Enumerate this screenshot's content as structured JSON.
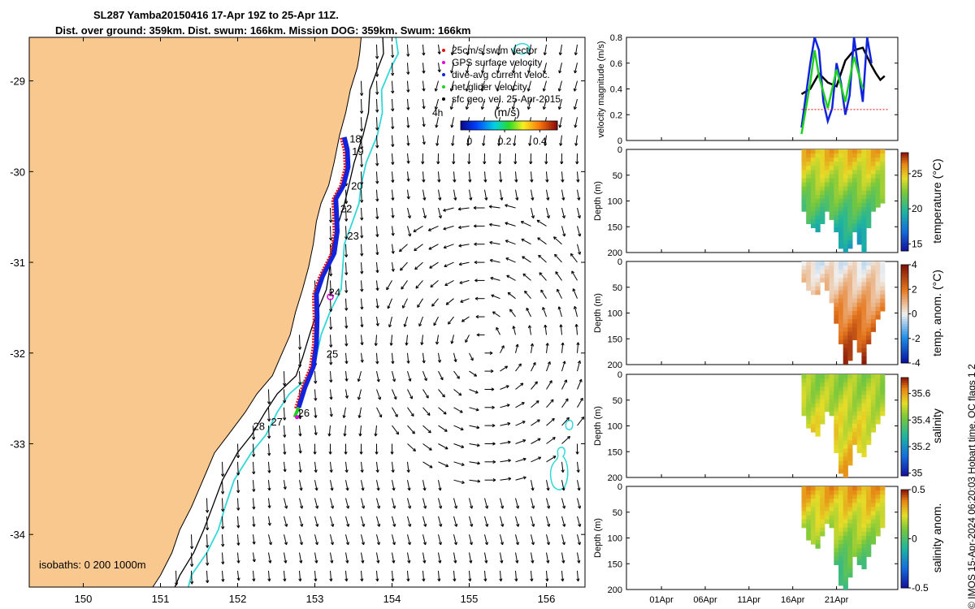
{
  "page": {
    "title_line1": "SL287 Yamba20150416 17-Apr 19Z to 25-Apr 11Z.",
    "title_line2": "Dist. over ground: 359km. Dist. swum: 166km. Mission DOG: 359km. Swum: 166km",
    "credit": "© IMOS 15-Apr-2024 06:20:03 Hobart time. QC flags 1  2"
  },
  "colors": {
    "land": "#f9c88f",
    "ocean": "#ffffff",
    "isobath_200": "#000000",
    "isobath_1000": "#30d8d8",
    "track_red": "#e01010",
    "track_blue": "#1024e0",
    "track_green": "#20d020",
    "gps_magenta": "#e000e0"
  },
  "chart_data": [
    {
      "type": "map",
      "name": "glider-track-map",
      "x_ticks": [
        "150",
        "151",
        "152",
        "153",
        "154",
        "155",
        "156"
      ],
      "x_values": [
        150,
        151,
        152,
        153,
        154,
        155,
        156
      ],
      "y_ticks": [
        "-29",
        "-30",
        "-31",
        "-32",
        "-33",
        "-34"
      ],
      "y_values": [
        -29,
        -30,
        -31,
        -32,
        -33,
        -34
      ],
      "xlim": [
        149.3,
        156.5
      ],
      "ylim": [
        -34.58,
        -28.52
      ],
      "legend": [
        {
          "label": "25cm/s swim vector",
          "color": "#e01010"
        },
        {
          "label": "GPS surface velocity",
          "color": "#e000e0"
        },
        {
          "label": "dive-avg current veloc.",
          "color": "#1024e0"
        },
        {
          "label": "net glider velocity",
          "color": "#20d020"
        },
        {
          "label": "sfc geo. vel. 25-Apr-2015",
          "color": "#000000"
        }
      ],
      "vector_legend_label": "4h",
      "colorbar": {
        "label": "(m/s)",
        "ticks": [
          "0",
          "0.2",
          "0.4"
        ],
        "tick_values": [
          0,
          0.2,
          0.4
        ],
        "range": [
          -0.05,
          0.5
        ]
      },
      "isobath_note": "isobaths: 0   200  1000m",
      "day_labels": [
        {
          "label": "18",
          "lon": 153.45,
          "lat": -29.68
        },
        {
          "label": "19",
          "lon": 153.48,
          "lat": -29.82
        },
        {
          "label": "20",
          "lon": 153.47,
          "lat": -30.2
        },
        {
          "label": "22",
          "lon": 153.33,
          "lat": -30.45
        },
        {
          "label": "23",
          "lon": 153.42,
          "lat": -30.75
        },
        {
          "label": "24",
          "lon": 153.18,
          "lat": -31.37
        },
        {
          "label": "25",
          "lon": 153.15,
          "lat": -32.05
        },
        {
          "label": "26",
          "lon": 152.78,
          "lat": -32.7
        },
        {
          "label": "27",
          "lon": 152.43,
          "lat": -32.8
        },
        {
          "label": "28",
          "lon": 152.2,
          "lat": -32.85
        }
      ],
      "track": [
        {
          "lon": 153.38,
          "lat": -29.62
        },
        {
          "lon": 153.42,
          "lat": -29.76
        },
        {
          "lon": 153.43,
          "lat": -29.95
        },
        {
          "lon": 153.37,
          "lat": -30.15
        },
        {
          "lon": 153.27,
          "lat": -30.3
        },
        {
          "lon": 153.28,
          "lat": -30.45
        },
        {
          "lon": 153.29,
          "lat": -30.66
        },
        {
          "lon": 153.25,
          "lat": -30.9
        },
        {
          "lon": 153.1,
          "lat": -31.15
        },
        {
          "lon": 153.02,
          "lat": -31.35
        },
        {
          "lon": 153.03,
          "lat": -31.6
        },
        {
          "lon": 153.02,
          "lat": -31.9
        },
        {
          "lon": 152.98,
          "lat": -32.15
        },
        {
          "lon": 152.87,
          "lat": -32.38
        },
        {
          "lon": 152.79,
          "lat": -32.6
        }
      ]
    },
    {
      "type": "line",
      "name": "velocity-magnitude",
      "ylabel": "velocity magnitude (m/s)",
      "y_ticks": [
        "0",
        "0.2",
        "0.4",
        "0.6",
        "0.8"
      ],
      "y_values": [
        0,
        0.2,
        0.4,
        0.6,
        0.8
      ],
      "ylim": [
        0,
        0.8
      ],
      "x_ticks": [
        "01Apr",
        "06Apr",
        "11Apr",
        "16Apr",
        "21Apr"
      ],
      "x_values": [
        "2015-04-01",
        "2015-04-06",
        "2015-04-11",
        "2015-04-16",
        "2015-04-21"
      ],
      "xlim": [
        "2015-03-28",
        "2015-04-28"
      ],
      "series": [
        {
          "color": "#000000",
          "x": [
            "2015-04-17",
            "2015-04-18",
            "2015-04-19",
            "2015-04-20",
            "2015-04-21",
            "2015-04-22",
            "2015-04-23",
            "2015-04-24",
            "2015-04-25",
            "2015-04-25 12:00",
            "2015-04-26",
            "2015-04-26 12:00"
          ],
          "values": [
            0.36,
            0.4,
            0.52,
            0.45,
            0.42,
            0.62,
            0.7,
            0.72,
            0.58,
            0.52,
            0.47,
            0.5
          ]
        },
        {
          "color": "#1024e0",
          "x": [
            "2015-04-17",
            "2015-04-17 12:00",
            "2015-04-18",
            "2015-04-18 12:00",
            "2015-04-19",
            "2015-04-19 12:00",
            "2015-04-20",
            "2015-04-20 12:00",
            "2015-04-21",
            "2015-04-21 12:00",
            "2015-04-22",
            "2015-04-22 12:00",
            "2015-04-23",
            "2015-04-23 12:00",
            "2015-04-24",
            "2015-04-24 12:00",
            "2015-04-25"
          ],
          "values": [
            0.1,
            0.35,
            0.6,
            0.8,
            0.7,
            0.3,
            0.15,
            0.25,
            0.6,
            0.45,
            0.2,
            0.35,
            0.8,
            0.55,
            0.3,
            0.8,
            0.6
          ]
        },
        {
          "color": "#20d020",
          "x": [
            "2015-04-17",
            "2015-04-17 12:00",
            "2015-04-18",
            "2015-04-18 12:00",
            "2015-04-19",
            "2015-04-20",
            "2015-04-21",
            "2015-04-22",
            "2015-04-23",
            "2015-04-24"
          ],
          "values": [
            0.05,
            0.25,
            0.45,
            0.7,
            0.5,
            0.25,
            0.55,
            0.3,
            0.65,
            0.4
          ]
        },
        {
          "color": "#e01010",
          "x": [
            "2015-04-17",
            "2015-04-18",
            "2015-04-19",
            "2015-04-20",
            "2015-04-21",
            "2015-04-22",
            "2015-04-23",
            "2015-04-24",
            "2015-04-25",
            "2015-04-26",
            "2015-04-27"
          ],
          "values": [
            0.24,
            0.24,
            0.24,
            0.24,
            0.24,
            0.24,
            0.24,
            0.24,
            0.24,
            0.24,
            0.24
          ]
        }
      ]
    },
    {
      "type": "heatmap",
      "name": "temperature-section",
      "ylabel": "Depth (m)",
      "y_ticks": [
        "0",
        "50",
        "100",
        "150",
        "200"
      ],
      "y_values": [
        0,
        50,
        100,
        150,
        200
      ],
      "colorbar_label": "temperature (°C)",
      "colorbar_ticks": [
        "15",
        "20",
        "25"
      ],
      "colorbar_values": [
        15,
        20,
        25
      ],
      "crange": [
        14,
        28
      ],
      "palette": "parula",
      "surface_value": 25.5,
      "deep_value": 18,
      "depth_profile": [
        120,
        140,
        150,
        160,
        140,
        120,
        130,
        160,
        190,
        200,
        190,
        160,
        180,
        200,
        150,
        120,
        110,
        100
      ]
    },
    {
      "type": "heatmap",
      "name": "temperature-anomaly-section",
      "ylabel": "Depth (m)",
      "y_ticks": [
        "0",
        "50",
        "100",
        "150",
        "200"
      ],
      "y_values": [
        0,
        50,
        100,
        150,
        200
      ],
      "colorbar_label": "temp. anom. (°C)",
      "colorbar_ticks": [
        "-4",
        "-2",
        "0",
        "2",
        "4"
      ],
      "colorbar_values": [
        -4,
        -2,
        0,
        2,
        4
      ],
      "crange": [
        -4,
        4
      ],
      "palette": "diverging",
      "surface_value": 0,
      "deep_value": 3.5,
      "depth_profile": [
        40,
        50,
        60,
        60,
        40,
        50,
        80,
        120,
        160,
        200,
        190,
        150,
        170,
        200,
        160,
        130,
        110,
        90
      ]
    },
    {
      "type": "heatmap",
      "name": "salinity-section",
      "ylabel": "Depth (m)",
      "y_ticks": [
        "0",
        "50",
        "100",
        "150",
        "200"
      ],
      "y_values": [
        0,
        50,
        100,
        150,
        200
      ],
      "colorbar_label": "salinity",
      "colorbar_ticks": [
        "35",
        "35.2",
        "35.4",
        "35.6"
      ],
      "colorbar_values": [
        35,
        35.2,
        35.4,
        35.6
      ],
      "crange": [
        34.98,
        35.72
      ],
      "palette": "parula",
      "surface_value": 35.45,
      "deep_value": 35.6,
      "depth_profile": [
        80,
        100,
        110,
        120,
        90,
        70,
        80,
        150,
        190,
        200,
        170,
        130,
        150,
        160,
        130,
        110,
        90,
        80
      ]
    },
    {
      "type": "heatmap",
      "name": "salinity-anomaly-section",
      "ylabel": "Depth (m)",
      "y_ticks": [
        "0",
        "50",
        "100",
        "150",
        "200"
      ],
      "y_values": [
        0,
        50,
        100,
        150,
        200
      ],
      "x_ticks": [
        "01Apr",
        "06Apr",
        "11Apr",
        "16Apr",
        "21Apr"
      ],
      "x_values": [
        "2015-04-01",
        "2015-04-06",
        "2015-04-11",
        "2015-04-16",
        "2015-04-21"
      ],
      "colorbar_label": "salinity anom.",
      "colorbar_ticks": [
        "-0.5",
        "0",
        "0.5"
      ],
      "colorbar_values": [
        -0.5,
        0,
        0.5
      ],
      "crange": [
        -0.5,
        0.5
      ],
      "palette": "parula",
      "surface_value": 0.35,
      "deep_value": -0.1,
      "depth_profile": [
        80,
        100,
        110,
        120,
        90,
        70,
        80,
        150,
        190,
        200,
        170,
        130,
        150,
        160,
        130,
        110,
        90,
        80
      ]
    }
  ]
}
